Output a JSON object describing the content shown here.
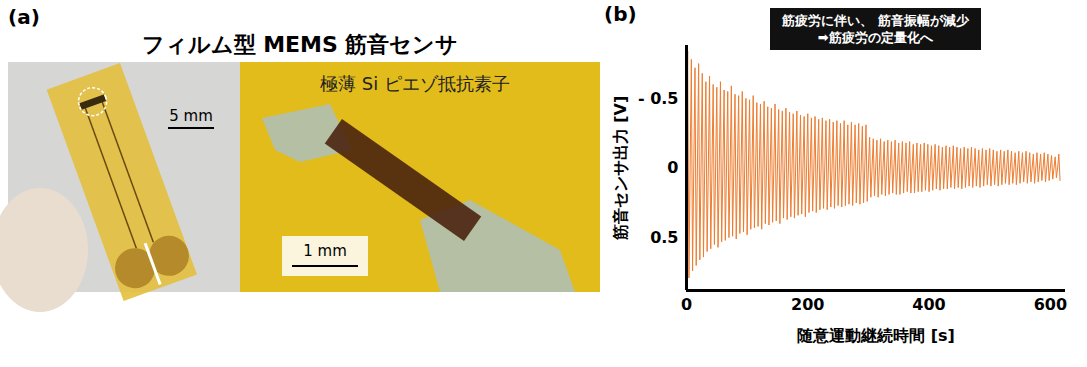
{
  "panel_a": {
    "label": "(a)",
    "title": "フィルム型 MEMS 筋音センサ",
    "photo_label": "極薄 Si ピエゾ抵抗素子",
    "scale_bars": [
      "5 mm",
      "1 mm"
    ]
  },
  "chart_data": {
    "type": "line",
    "panel_label": "(b)",
    "annotation": [
      "筋疲労に伴い、 筋音振幅が減少",
      "➡筋疲労の定量化へ"
    ],
    "xlabel": "随意運動継続時間 [s]",
    "ylabel": "筋音センサ出力 [V]",
    "color": "#ed7d31",
    "grid": false,
    "xlim": [
      0,
      625
    ],
    "xticks": [
      0,
      200,
      400,
      600
    ],
    "ylim": [
      0.88,
      -0.88
    ],
    "yticks": [
      {
        "value": -0.5,
        "label": "- 0.5"
      },
      0,
      0.5
    ],
    "x": [
      0,
      2,
      4,
      6,
      8,
      10,
      12,
      14,
      16,
      18,
      20,
      22,
      24,
      26,
      28,
      30,
      32,
      34,
      36,
      38,
      40,
      42,
      44,
      46,
      48,
      50,
      52,
      54,
      56,
      58,
      60,
      62,
      64,
      66,
      68,
      70,
      72,
      74,
      76,
      78,
      80,
      82,
      84,
      86,
      88,
      90,
      92,
      94,
      96,
      98,
      100,
      102,
      104,
      106,
      108,
      110,
      112,
      114,
      116,
      118,
      120,
      122,
      124,
      126,
      128,
      130,
      132,
      134,
      136,
      138,
      140,
      142,
      144,
      146,
      148,
      150,
      152,
      154,
      156,
      158,
      160,
      162,
      164,
      166,
      168,
      170,
      172,
      174,
      176,
      178,
      180,
      182,
      184,
      186,
      188,
      190,
      192,
      194,
      196,
      198,
      200,
      202,
      204,
      206,
      208,
      210,
      212,
      214,
      216,
      218,
      220,
      222,
      224,
      226,
      228,
      230,
      232,
      234,
      236,
      238,
      240,
      242,
      244,
      246,
      248,
      250,
      252,
      254,
      256,
      258,
      260,
      262,
      264,
      266,
      268,
      270,
      272,
      274,
      276,
      278,
      280,
      282,
      284,
      286,
      288,
      290,
      292,
      294,
      296,
      298,
      300,
      302,
      304,
      306,
      308,
      310,
      312,
      314,
      316,
      318,
      320,
      322,
      324,
      326,
      328,
      330,
      332,
      334,
      336,
      338,
      340,
      342,
      344,
      346,
      348,
      350,
      352,
      354,
      356,
      358,
      360,
      362,
      364,
      366,
      368,
      370,
      372,
      374,
      376,
      378,
      380,
      382,
      384,
      386,
      388,
      390,
      392,
      394,
      396,
      398,
      400,
      402,
      404,
      406,
      408,
      410,
      412,
      414,
      416,
      418,
      420,
      422,
      424,
      426,
      428,
      430,
      432,
      434,
      436,
      438,
      440,
      442,
      444,
      446,
      448,
      450,
      452,
      454,
      456,
      458,
      460,
      462,
      464,
      466,
      468,
      470,
      472,
      474,
      476,
      478,
      480,
      482,
      484,
      486,
      488,
      490,
      492,
      494,
      496,
      498,
      500,
      502,
      504,
      506,
      508,
      510,
      512,
      514,
      516,
      518,
      520,
      522,
      524,
      526,
      528,
      530,
      532,
      534,
      536,
      538,
      540,
      542,
      544,
      546,
      548,
      550,
      552,
      554,
      556,
      558,
      560,
      562,
      564,
      566,
      568,
      570,
      572,
      574,
      576,
      578,
      580,
      582,
      584,
      586,
      588,
      590,
      592,
      594,
      596,
      598,
      600,
      602,
      604,
      606,
      608,
      610,
      612,
      614,
      616
    ],
    "values": [
      0,
      -0.84,
      0.79,
      0,
      -0.78,
      0.74,
      0,
      -0.72,
      0.7,
      0,
      -0.75,
      0.66,
      0,
      -0.68,
      0.64,
      0,
      -0.62,
      0.6,
      0,
      -0.66,
      0.58,
      0,
      -0.6,
      0.55,
      0,
      -0.58,
      0.57,
      0,
      -0.62,
      0.53,
      0,
      -0.56,
      0.52,
      0,
      -0.55,
      0.5,
      0,
      -0.59,
      0.49,
      0,
      -0.53,
      0.51,
      0,
      -0.52,
      0.47,
      0,
      -0.55,
      0.46,
      0,
      -0.5,
      0.48,
      0,
      -0.49,
      0.44,
      0,
      -0.52,
      0.43,
      0,
      -0.47,
      0.42,
      0,
      -0.46,
      0.44,
      0,
      -0.48,
      0.4,
      0,
      -0.44,
      0.41,
      0,
      -0.43,
      0.39,
      0,
      -0.46,
      0.38,
      0,
      -0.42,
      0.4,
      0,
      -0.41,
      0.36,
      0,
      -0.43,
      0.37,
      0,
      -0.4,
      0.35,
      0,
      -0.39,
      0.36,
      0,
      -0.41,
      0.34,
      0,
      -0.38,
      0.33,
      0,
      -0.37,
      0.35,
      0,
      -0.39,
      0.32,
      0,
      -0.36,
      0.31,
      0,
      -0.37,
      0.32,
      0,
      -0.35,
      0.3,
      0,
      -0.36,
      0.29,
      0,
      -0.34,
      0.3,
      0,
      -0.35,
      0.28,
      0,
      -0.33,
      0.29,
      0,
      -0.34,
      0.27,
      0,
      -0.32,
      0.28,
      0,
      -0.34,
      0.27,
      0,
      -0.31,
      0.26,
      0,
      -0.33,
      0.27,
      0,
      -0.31,
      0.25,
      0,
      -0.32,
      0.26,
      0,
      -0.3,
      0.25,
      0,
      -0.31,
      0.24,
      0,
      -0.22,
      0.21,
      0,
      -0.21,
      0.2,
      0,
      -0.2,
      0.21,
      0,
      -0.21,
      0.19,
      0,
      -0.19,
      0.2,
      0,
      -0.2,
      0.19,
      0,
      -0.19,
      0.18,
      0,
      -0.2,
      0.19,
      0,
      -0.18,
      0.19,
      0,
      -0.19,
      0.18,
      0,
      -0.18,
      0.17,
      0,
      -0.19,
      0.18,
      0,
      -0.17,
      0.18,
      0,
      -0.18,
      0.17,
      0,
      -0.17,
      0.17,
      0,
      -0.18,
      0.16,
      0,
      -0.17,
      0.17,
      0,
      -0.16,
      0.16,
      0,
      -0.17,
      0.15,
      0,
      -0.16,
      0.16,
      0,
      -0.15,
      0.15,
      0,
      -0.16,
      0.15,
      0,
      -0.15,
      0.14,
      0,
      -0.16,
      0.15,
      0,
      -0.15,
      0.14,
      0,
      -0.14,
      0.15,
      0,
      -0.15,
      0.14,
      0,
      -0.14,
      0.13,
      0,
      -0.15,
      0.14,
      0,
      -0.14,
      0.13,
      0,
      -0.13,
      0.14,
      0,
      -0.14,
      0.13,
      0,
      -0.13,
      0.12,
      0,
      -0.14,
      0.13,
      0,
      -0.13,
      0.12,
      0,
      -0.12,
      0.13,
      0,
      -0.13,
      0.12,
      0,
      -0.12,
      0.11,
      0,
      -0.13,
      0.12,
      0,
      -0.12,
      0.11,
      0,
      -0.11,
      0.12,
      0,
      -0.12,
      0.11,
      0,
      -0.11,
      0.1,
      0,
      -0.12,
      0.11,
      0,
      -0.11,
      0.1,
      0,
      -0.1,
      0.11,
      0,
      -0.11,
      0.1,
      0,
      -0.1,
      0.09,
      0,
      -0.11,
      0.1,
      0,
      -0.1,
      0.09,
      0,
      -0.09,
      0.08,
      0,
      -0.08,
      0.07,
      0,
      -0.1,
      0.09
    ]
  }
}
